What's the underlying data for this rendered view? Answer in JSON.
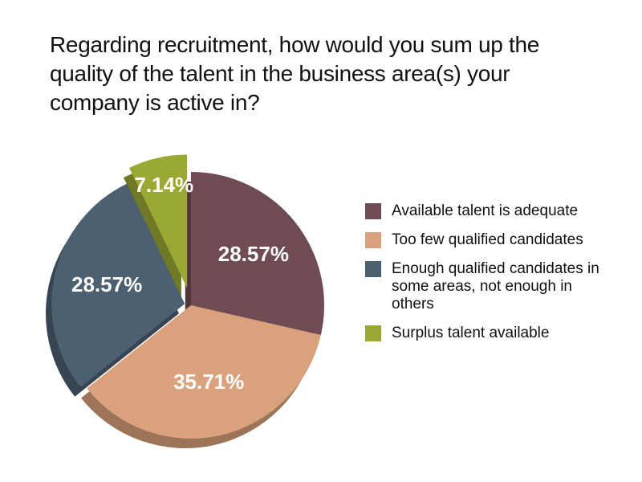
{
  "chart_data": {
    "type": "pie",
    "title": "Regarding recruitment, how would you sum up the quality of the talent in the business area(s) your company is active in?",
    "categories": [
      "Available talent is adequate",
      "Too few qualified candidates",
      "Enough qualified candidates in some areas, not enough in others",
      "Surplus talent available"
    ],
    "values": [
      28.57,
      35.71,
      28.57,
      7.14
    ],
    "value_labels": [
      "28.57%",
      "35.71%",
      "28.57%",
      "7.14%"
    ],
    "colors": [
      "#6f4b54",
      "#d9a27c",
      "#4b6070",
      "#9ba833"
    ],
    "legend": "right"
  }
}
